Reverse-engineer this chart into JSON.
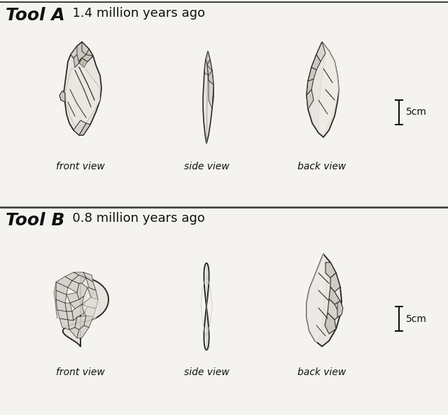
{
  "bg_color": "#f5f3f0",
  "title_A": "Tool A",
  "subtitle_A": "  1.4 million years ago",
  "title_B": "Tool B",
  "subtitle_B": "  0.8 million years ago",
  "label_front": "front view",
  "label_side": "side view",
  "label_back": "back view",
  "scale_label": "5cm",
  "title_fontsize": 18,
  "subtitle_fontsize": 13,
  "label_fontsize": 10,
  "scale_fontsize": 10,
  "line_color": "#2a2a2a",
  "stone_fill": "#e8e4de",
  "stone_dark": "#b0a898",
  "stone_mid": "#ccc8c0"
}
